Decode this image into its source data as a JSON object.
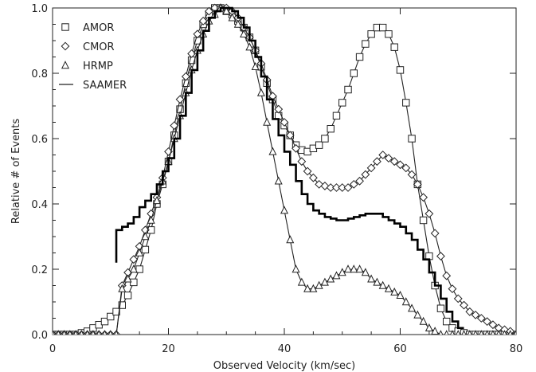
{
  "chart_data": {
    "type": "line",
    "title": "",
    "xlabel": "Observed Velocity (km/sec)",
    "ylabel": "Relative # of Events",
    "xlim": [
      0,
      80
    ],
    "ylim": [
      0,
      1.0
    ],
    "xticks": [
      0,
      20,
      40,
      60,
      80
    ],
    "yticks": [
      0.0,
      0.2,
      0.4,
      0.6,
      0.8,
      1.0
    ],
    "xtick_labels": [
      "0",
      "20",
      "40",
      "60",
      "80"
    ],
    "ytick_labels": [
      "0.0",
      "0.2",
      "0.4",
      "0.6",
      "0.8",
      "1.0"
    ],
    "grid": false,
    "legend_position": "top-left",
    "series": [
      {
        "name": "AMOR",
        "marker": "square",
        "step": false,
        "color": "#222222",
        "x": [
          0,
          1,
          2,
          3,
          4,
          5,
          6,
          7,
          8,
          9,
          10,
          11,
          12,
          13,
          14,
          15,
          16,
          17,
          18,
          19,
          20,
          21,
          22,
          23,
          24,
          25,
          26,
          27,
          28,
          29,
          30,
          31,
          32,
          33,
          34,
          35,
          36,
          37,
          38,
          39,
          40,
          41,
          42,
          43,
          44,
          45,
          46,
          47,
          48,
          49,
          50,
          51,
          52,
          53,
          54,
          55,
          56,
          57,
          58,
          59,
          60,
          61,
          62,
          63,
          64,
          65,
          66,
          67,
          68,
          69,
          70,
          71,
          72,
          73,
          74,
          75,
          76,
          77,
          78,
          79,
          80
        ],
        "y": [
          0.0,
          0.0,
          0.0,
          0.0,
          0.0,
          0.005,
          0.01,
          0.02,
          0.03,
          0.04,
          0.055,
          0.07,
          0.09,
          0.12,
          0.16,
          0.2,
          0.26,
          0.32,
          0.4,
          0.46,
          0.53,
          0.61,
          0.69,
          0.77,
          0.84,
          0.9,
          0.95,
          0.98,
          1.0,
          1.0,
          0.99,
          0.98,
          0.96,
          0.94,
          0.91,
          0.87,
          0.82,
          0.77,
          0.72,
          0.67,
          0.64,
          0.61,
          0.58,
          0.565,
          0.56,
          0.57,
          0.58,
          0.6,
          0.63,
          0.67,
          0.71,
          0.75,
          0.8,
          0.85,
          0.89,
          0.92,
          0.94,
          0.94,
          0.92,
          0.88,
          0.81,
          0.71,
          0.6,
          0.46,
          0.35,
          0.24,
          0.15,
          0.08,
          0.04,
          0.02,
          0.01,
          0.005,
          0.0,
          0.0,
          0.0,
          0.0,
          0.0,
          0.0,
          0.0,
          0.0,
          0.0
        ]
      },
      {
        "name": "CMOR",
        "marker": "diamond",
        "step": false,
        "color": "#222222",
        "x": [
          0,
          1,
          2,
          3,
          4,
          5,
          6,
          7,
          8,
          9,
          10,
          11,
          12,
          13,
          14,
          15,
          16,
          17,
          18,
          19,
          20,
          21,
          22,
          23,
          24,
          25,
          26,
          27,
          28,
          29,
          30,
          31,
          32,
          33,
          34,
          35,
          36,
          37,
          38,
          39,
          40,
          41,
          42,
          43,
          44,
          45,
          46,
          47,
          48,
          49,
          50,
          51,
          52,
          53,
          54,
          55,
          56,
          57,
          58,
          59,
          60,
          61,
          62,
          63,
          64,
          65,
          66,
          67,
          68,
          69,
          70,
          71,
          72,
          73,
          74,
          75,
          76,
          77,
          78,
          79,
          80
        ],
        "y": [
          0.0,
          0.0,
          0.0,
          0.0,
          0.0,
          0.0,
          0.0,
          0.0,
          0.0,
          0.0,
          0.0,
          0.0,
          0.15,
          0.19,
          0.23,
          0.27,
          0.32,
          0.37,
          0.42,
          0.48,
          0.56,
          0.64,
          0.72,
          0.79,
          0.86,
          0.92,
          0.96,
          0.99,
          1.0,
          1.0,
          1.0,
          0.99,
          0.97,
          0.94,
          0.91,
          0.87,
          0.83,
          0.78,
          0.73,
          0.69,
          0.65,
          0.61,
          0.57,
          0.53,
          0.5,
          0.48,
          0.46,
          0.455,
          0.45,
          0.45,
          0.45,
          0.45,
          0.46,
          0.47,
          0.49,
          0.51,
          0.53,
          0.55,
          0.54,
          0.53,
          0.52,
          0.51,
          0.49,
          0.46,
          0.42,
          0.37,
          0.31,
          0.24,
          0.18,
          0.14,
          0.11,
          0.09,
          0.07,
          0.06,
          0.05,
          0.04,
          0.03,
          0.02,
          0.015,
          0.01,
          0.0
        ]
      },
      {
        "name": "HRMP",
        "marker": "triangle",
        "step": false,
        "color": "#222222",
        "x": [
          0,
          1,
          2,
          3,
          4,
          5,
          6,
          7,
          8,
          9,
          10,
          11,
          12,
          13,
          14,
          15,
          16,
          17,
          18,
          19,
          20,
          21,
          22,
          23,
          24,
          25,
          26,
          27,
          28,
          29,
          30,
          31,
          32,
          33,
          34,
          35,
          36,
          37,
          38,
          39,
          40,
          41,
          42,
          43,
          44,
          45,
          46,
          47,
          48,
          49,
          50,
          51,
          52,
          53,
          54,
          55,
          56,
          57,
          58,
          59,
          60,
          61,
          62,
          63,
          64,
          65,
          66,
          67,
          68,
          69,
          70,
          71,
          72,
          73,
          74,
          75,
          76,
          77,
          78,
          79,
          80
        ],
        "y": [
          0.0,
          0.0,
          0.0,
          0.0,
          0.0,
          0.0,
          0.0,
          0.0,
          0.0,
          0.0,
          0.0,
          0.0,
          0.14,
          0.17,
          0.2,
          0.25,
          0.3,
          0.35,
          0.41,
          0.47,
          0.53,
          0.6,
          0.67,
          0.74,
          0.81,
          0.87,
          0.92,
          0.96,
          0.98,
          1.0,
          0.99,
          0.97,
          0.95,
          0.92,
          0.88,
          0.82,
          0.74,
          0.65,
          0.56,
          0.47,
          0.38,
          0.29,
          0.2,
          0.16,
          0.14,
          0.14,
          0.15,
          0.16,
          0.17,
          0.18,
          0.19,
          0.2,
          0.2,
          0.2,
          0.19,
          0.17,
          0.16,
          0.15,
          0.14,
          0.13,
          0.12,
          0.1,
          0.08,
          0.06,
          0.04,
          0.02,
          0.01,
          0.0,
          0.0,
          0.0,
          0.0,
          0.0,
          0.0,
          0.0,
          0.0,
          0.0,
          0.0,
          0.0,
          0.0,
          0.0,
          0.0
        ]
      },
      {
        "name": "SAAMER",
        "marker": "none",
        "step": true,
        "color": "#000000",
        "x": [
          11,
          12,
          13,
          14,
          15,
          16,
          17,
          18,
          19,
          20,
          21,
          22,
          23,
          24,
          25,
          26,
          27,
          28,
          29,
          30,
          31,
          32,
          33,
          34,
          35,
          36,
          37,
          38,
          39,
          40,
          41,
          42,
          43,
          44,
          45,
          46,
          47,
          48,
          49,
          50,
          51,
          52,
          53,
          54,
          55,
          56,
          57,
          58,
          59,
          60,
          61,
          62,
          63,
          64,
          65,
          66,
          67,
          68,
          69,
          70
        ],
        "y": [
          0.32,
          0.33,
          0.34,
          0.36,
          0.39,
          0.41,
          0.43,
          0.46,
          0.5,
          0.54,
          0.6,
          0.67,
          0.74,
          0.81,
          0.87,
          0.93,
          0.97,
          0.99,
          1.0,
          1.0,
          0.99,
          0.97,
          0.94,
          0.9,
          0.85,
          0.79,
          0.72,
          0.66,
          0.61,
          0.56,
          0.52,
          0.47,
          0.43,
          0.4,
          0.38,
          0.37,
          0.36,
          0.355,
          0.35,
          0.35,
          0.355,
          0.36,
          0.365,
          0.37,
          0.37,
          0.37,
          0.36,
          0.35,
          0.34,
          0.33,
          0.31,
          0.29,
          0.26,
          0.23,
          0.19,
          0.15,
          0.11,
          0.07,
          0.04,
          0.02
        ]
      }
    ]
  }
}
